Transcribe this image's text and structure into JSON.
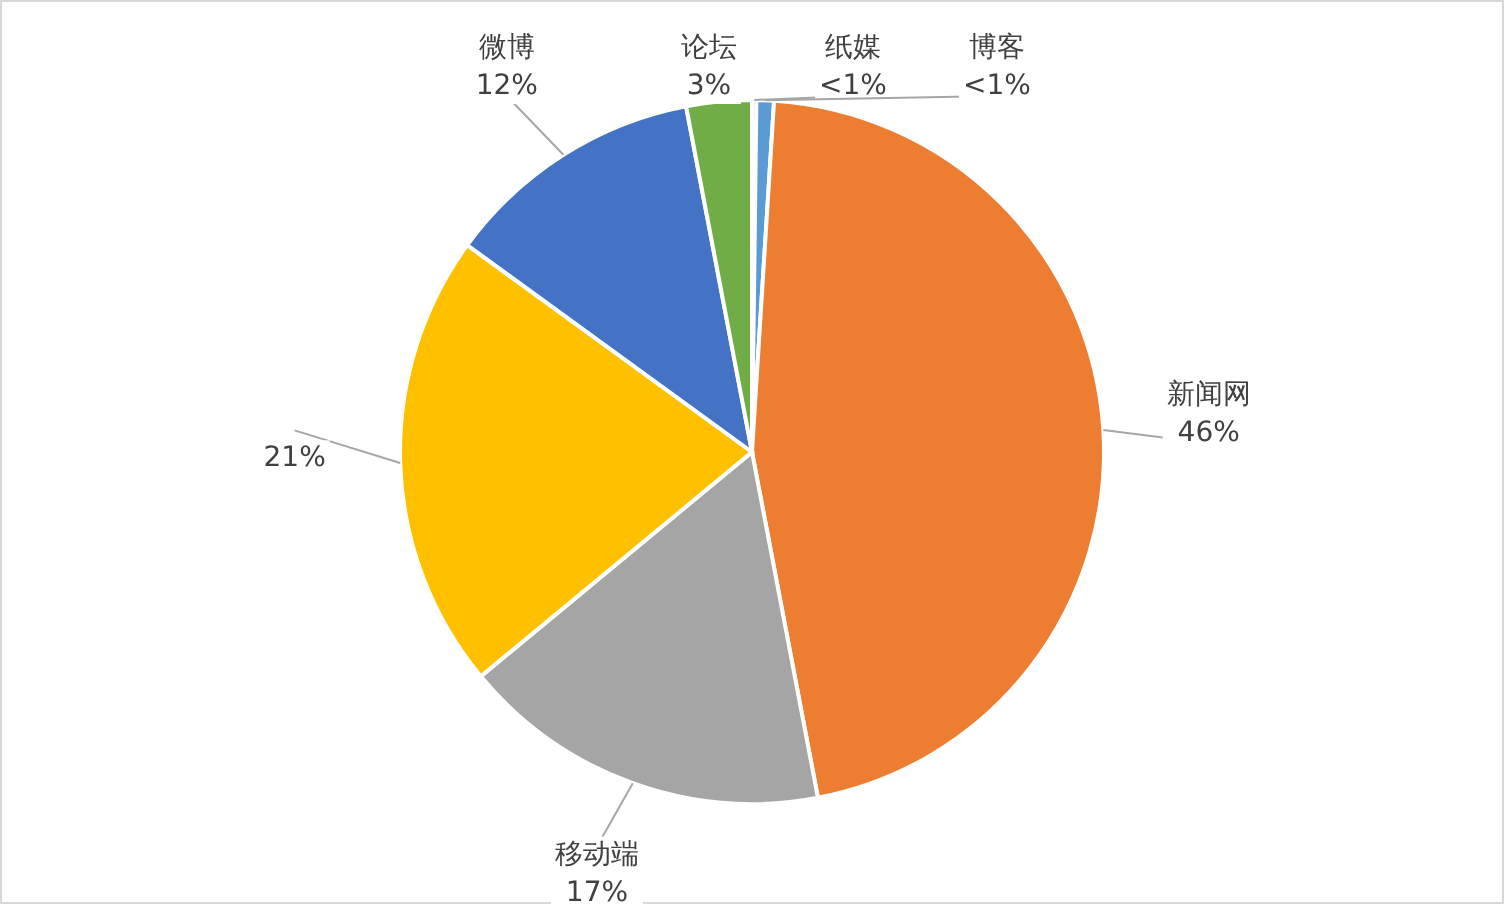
{
  "chart_data": {
    "type": "pie",
    "categories": [
      "纸媒",
      "博客",
      "新闻网",
      "移动端",
      null,
      "微博",
      "论坛"
    ],
    "values": [
      0.2,
      0.8,
      46,
      17,
      21,
      12,
      3
    ],
    "colors": [
      "#4472c4",
      "#5b9bd5",
      "#ed7d31",
      "#a5a5a5",
      "#ffc000",
      "#4472c4",
      "#70ad47"
    ],
    "value_labels": [
      "<1%",
      "<1%",
      "46%",
      "17%",
      "21%",
      "12%",
      "3%"
    ]
  }
}
